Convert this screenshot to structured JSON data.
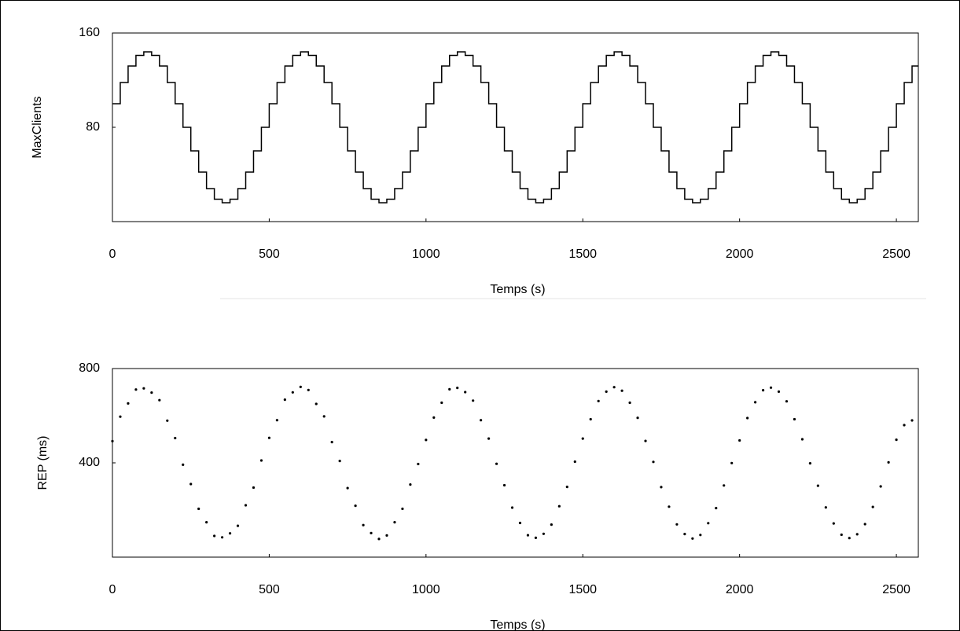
{
  "chart_data": [
    {
      "type": "step",
      "ylabel": "MaxClients",
      "xlabel": "Temps (s)",
      "color": "#000000",
      "xlim": [
        0,
        2570
      ],
      "ylim": [
        0,
        160
      ],
      "xticks": [
        0,
        500,
        1000,
        1500,
        2000,
        2500
      ],
      "yticks": [
        80,
        160
      ],
      "x": [
        0,
        25,
        50,
        75,
        100,
        125,
        150,
        175,
        200,
        225,
        250,
        275,
        300,
        325,
        350,
        375,
        400,
        425,
        450,
        475,
        500,
        525,
        550,
        575,
        600,
        625,
        650,
        675,
        700,
        725,
        750,
        775,
        800,
        825,
        850,
        875,
        900,
        925,
        950,
        975,
        1000,
        1025,
        1050,
        1075,
        1100,
        1125,
        1150,
        1175,
        1200,
        1225,
        1250,
        1275,
        1300,
        1325,
        1350,
        1375,
        1400,
        1425,
        1450,
        1475,
        1500,
        1525,
        1550,
        1575,
        1600,
        1625,
        1650,
        1675,
        1700,
        1725,
        1750,
        1775,
        1800,
        1825,
        1850,
        1875,
        1900,
        1925,
        1950,
        1975,
        2000,
        2025,
        2050,
        2075,
        2100,
        2125,
        2150,
        2175,
        2200,
        2225,
        2250,
        2275,
        2300,
        2325,
        2350,
        2375,
        2400,
        2425,
        2450,
        2475,
        2500,
        2525,
        2550
      ],
      "values": [
        100,
        118,
        132,
        141,
        144,
        141,
        132,
        118,
        100,
        80,
        60,
        42,
        28,
        19,
        16,
        19,
        28,
        42,
        60,
        80,
        100,
        118,
        132,
        141,
        144,
        141,
        132,
        118,
        100,
        80,
        60,
        42,
        28,
        19,
        16,
        19,
        28,
        42,
        60,
        80,
        100,
        118,
        132,
        141,
        144,
        141,
        132,
        118,
        100,
        80,
        60,
        42,
        28,
        19,
        16,
        19,
        28,
        42,
        60,
        80,
        100,
        118,
        132,
        141,
        144,
        141,
        132,
        118,
        100,
        80,
        60,
        42,
        28,
        19,
        16,
        19,
        28,
        42,
        60,
        80,
        100,
        118,
        132,
        141,
        144,
        141,
        132,
        118,
        100,
        80,
        60,
        42,
        28,
        19,
        16,
        19,
        28,
        42,
        60,
        80,
        100,
        118,
        132
      ]
    },
    {
      "type": "scatter",
      "ylabel": "REP (ms)",
      "xlabel": "Temps (s)",
      "color": "#000000",
      "xlim": [
        0,
        2570
      ],
      "ylim": [
        0,
        800
      ],
      "xticks": [
        0,
        500,
        1000,
        1500,
        2000,
        2500
      ],
      "yticks": [
        400,
        800
      ],
      "x": [
        0,
        25,
        50,
        75,
        100,
        125,
        150,
        175,
        200,
        225,
        250,
        275,
        300,
        325,
        350,
        375,
        400,
        425,
        450,
        475,
        500,
        525,
        550,
        575,
        600,
        625,
        650,
        675,
        700,
        725,
        750,
        775,
        800,
        825,
        850,
        875,
        900,
        925,
        950,
        975,
        1000,
        1025,
        1050,
        1075,
        1100,
        1125,
        1150,
        1175,
        1200,
        1225,
        1250,
        1275,
        1300,
        1325,
        1350,
        1375,
        1400,
        1425,
        1450,
        1475,
        1500,
        1525,
        1550,
        1575,
        1600,
        1625,
        1650,
        1675,
        1700,
        1725,
        1750,
        1775,
        1800,
        1825,
        1850,
        1875,
        1900,
        1925,
        1950,
        1975,
        2000,
        2025,
        2050,
        2075,
        2100,
        2125,
        2150,
        2175,
        2200,
        2225,
        2250,
        2275,
        2300,
        2325,
        2350,
        2375,
        2400,
        2425,
        2450,
        2475,
        2500,
        2525,
        2550
      ],
      "values": [
        492,
        596,
        652,
        711,
        716,
        698,
        666,
        579,
        505,
        392,
        310,
        205,
        148,
        90,
        84,
        101,
        133,
        220,
        295,
        410,
        506,
        581,
        668,
        699,
        722,
        709,
        650,
        597,
        488,
        408,
        293,
        218,
        136,
        102,
        77,
        92,
        148,
        205,
        308,
        395,
        497,
        592,
        655,
        712,
        718,
        700,
        664,
        581,
        503,
        396,
        305,
        210,
        145,
        93,
        82,
        99,
        138,
        216,
        298,
        405,
        503,
        585,
        662,
        702,
        721,
        706,
        655,
        591,
        493,
        404,
        297,
        214,
        139,
        98,
        79,
        94,
        144,
        208,
        304,
        399,
        495,
        590,
        657,
        708,
        719,
        702,
        661,
        585,
        500,
        398,
        303,
        211,
        143,
        95,
        81,
        97,
        140,
        213,
        300,
        402,
        498,
        560,
        580
      ]
    }
  ]
}
